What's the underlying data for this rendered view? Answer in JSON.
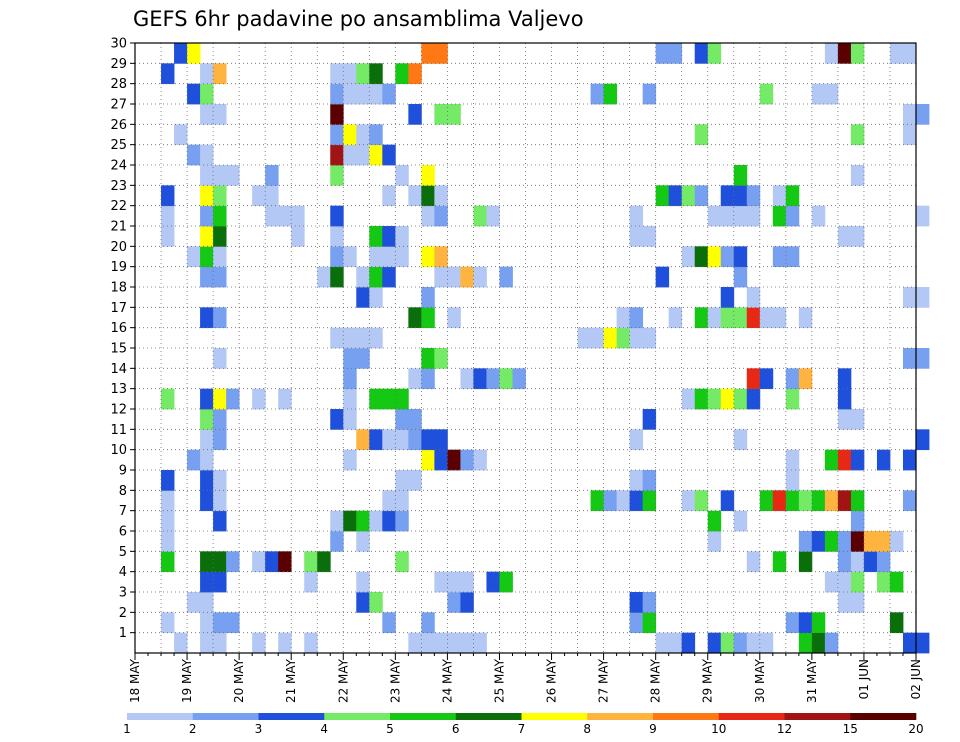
{
  "chart_data": {
    "type": "heatmap",
    "title": "GEFS 6hr padavine po ansamblima Valjevo",
    "y_categories": [
      "1",
      "2",
      "3",
      "4",
      "5",
      "6",
      "7",
      "8",
      "9",
      "10",
      "11",
      "12",
      "13",
      "14",
      "15",
      "16",
      "17",
      "18",
      "19",
      "20",
      "21",
      "22",
      "23",
      "24",
      "25",
      "26",
      "27",
      "28",
      "29",
      "30"
    ],
    "x_labels": [
      "18 MAY",
      "19 MAY",
      "20 MAY",
      "21 MAY",
      "22 MAY",
      "23 MAY",
      "24 MAY",
      "25 MAY",
      "26 MAY",
      "27 MAY",
      "28 MAY",
      "29 MAY",
      "30 MAY",
      "31 MAY",
      "01 JUN",
      "02 JUN"
    ],
    "steps_per_day": 4,
    "grid": true,
    "colorbar": {
      "labels": [
        "1",
        "2",
        "3",
        "4",
        "5",
        "6",
        "7",
        "8",
        "9",
        "10",
        "12",
        "15",
        "20"
      ],
      "colors": [
        "#b4c8f5",
        "#78a0f0",
        "#1e50dc",
        "#74ea66",
        "#14c814",
        "#0a6e0a",
        "#ffff00",
        "#ffb440",
        "#ff7814",
        "#e62814",
        "#a01414",
        "#5a0000"
      ]
    },
    "cells": {
      "30": [
        [
          3,
          3
        ],
        [
          4,
          7
        ],
        [
          22,
          9
        ],
        [
          23,
          9
        ],
        [
          40,
          2
        ],
        [
          41,
          2
        ],
        [
          43,
          3
        ],
        [
          44,
          4
        ],
        [
          53,
          1
        ],
        [
          54,
          12
        ],
        [
          55,
          4
        ],
        [
          58,
          1
        ],
        [
          59,
          1
        ]
      ],
      "29": [
        [
          2,
          3
        ],
        [
          5,
          1
        ],
        [
          6,
          8
        ],
        [
          15,
          1
        ],
        [
          16,
          1
        ],
        [
          17,
          4
        ],
        [
          18,
          6
        ],
        [
          20,
          5
        ],
        [
          21,
          9
        ]
      ],
      "28": [
        [
          4,
          3
        ],
        [
          5,
          4
        ],
        [
          15,
          2
        ],
        [
          16,
          1
        ],
        [
          17,
          1
        ],
        [
          18,
          1
        ],
        [
          19,
          2
        ],
        [
          35,
          2
        ],
        [
          36,
          5
        ],
        [
          39,
          2
        ],
        [
          48,
          4
        ],
        [
          52,
          1
        ],
        [
          53,
          1
        ]
      ],
      "27": [
        [
          5,
          1
        ],
        [
          6,
          1
        ],
        [
          15,
          12
        ],
        [
          21,
          3
        ],
        [
          23,
          4
        ],
        [
          24,
          4
        ],
        [
          59,
          1
        ],
        [
          60,
          2
        ]
      ],
      "26": [
        [
          3,
          1
        ],
        [
          15,
          2
        ],
        [
          16,
          7
        ],
        [
          17,
          1
        ],
        [
          18,
          2
        ],
        [
          43,
          4
        ],
        [
          55,
          4
        ],
        [
          59,
          1
        ]
      ],
      "25": [
        [
          4,
          2
        ],
        [
          5,
          1
        ],
        [
          15,
          11
        ],
        [
          16,
          1
        ],
        [
          17,
          1
        ],
        [
          18,
          7
        ],
        [
          19,
          3
        ]
      ],
      "24": [
        [
          5,
          1
        ],
        [
          6,
          1
        ],
        [
          7,
          1
        ],
        [
          10,
          2
        ],
        [
          15,
          4
        ],
        [
          20,
          1
        ],
        [
          22,
          7
        ],
        [
          46,
          5
        ],
        [
          55,
          1
        ]
      ],
      "23": [
        [
          2,
          3
        ],
        [
          5,
          7
        ],
        [
          6,
          4
        ],
        [
          9,
          1
        ],
        [
          10,
          1
        ],
        [
          19,
          1
        ],
        [
          21,
          1
        ],
        [
          22,
          6
        ],
        [
          23,
          1
        ],
        [
          40,
          5
        ],
        [
          41,
          3
        ],
        [
          42,
          4
        ],
        [
          43,
          2
        ],
        [
          45,
          3
        ],
        [
          46,
          3
        ],
        [
          47,
          2
        ],
        [
          49,
          1
        ],
        [
          50,
          5
        ]
      ],
      "22": [
        [
          2,
          1
        ],
        [
          5,
          2
        ],
        [
          6,
          5
        ],
        [
          10,
          1
        ],
        [
          11,
          1
        ],
        [
          12,
          1
        ],
        [
          15,
          3
        ],
        [
          22,
          1
        ],
        [
          23,
          2
        ],
        [
          26,
          4
        ],
        [
          27,
          1
        ],
        [
          38,
          1
        ],
        [
          44,
          1
        ],
        [
          45,
          1
        ],
        [
          46,
          1
        ],
        [
          47,
          1
        ],
        [
          49,
          5
        ],
        [
          50,
          2
        ],
        [
          52,
          1
        ],
        [
          60,
          1
        ]
      ],
      "21": [
        [
          2,
          1
        ],
        [
          5,
          7
        ],
        [
          6,
          6
        ],
        [
          12,
          1
        ],
        [
          15,
          1
        ],
        [
          18,
          5
        ],
        [
          19,
          3
        ],
        [
          20,
          1
        ],
        [
          38,
          1
        ],
        [
          39,
          1
        ],
        [
          54,
          1
        ],
        [
          55,
          1
        ]
      ],
      "20": [
        [
          4,
          1
        ],
        [
          5,
          5
        ],
        [
          6,
          1
        ],
        [
          15,
          2
        ],
        [
          16,
          1
        ],
        [
          18,
          1
        ],
        [
          19,
          1
        ],
        [
          20,
          1
        ],
        [
          22,
          7
        ],
        [
          23,
          8
        ],
        [
          42,
          1
        ],
        [
          43,
          6
        ],
        [
          44,
          7
        ],
        [
          45,
          2
        ],
        [
          46,
          3
        ],
        [
          49,
          2
        ],
        [
          50,
          2
        ]
      ],
      "19": [
        [
          5,
          2
        ],
        [
          6,
          2
        ],
        [
          14,
          1
        ],
        [
          15,
          6
        ],
        [
          17,
          1
        ],
        [
          18,
          5
        ],
        [
          19,
          3
        ],
        [
          23,
          1
        ],
        [
          24,
          1
        ],
        [
          25,
          8
        ],
        [
          26,
          1
        ],
        [
          28,
          2
        ],
        [
          40,
          3
        ],
        [
          46,
          2
        ]
      ],
      "18": [
        [
          17,
          3
        ],
        [
          18,
          1
        ],
        [
          22,
          2
        ],
        [
          45,
          3
        ],
        [
          47,
          1
        ],
        [
          59,
          1
        ],
        [
          60,
          1
        ]
      ],
      "17": [
        [
          5,
          3
        ],
        [
          6,
          2
        ],
        [
          21,
          6
        ],
        [
          22,
          5
        ],
        [
          24,
          1
        ],
        [
          37,
          1
        ],
        [
          38,
          2
        ],
        [
          41,
          1
        ],
        [
          43,
          5
        ],
        [
          44,
          1
        ],
        [
          45,
          4
        ],
        [
          46,
          4
        ],
        [
          47,
          10
        ],
        [
          48,
          1
        ],
        [
          49,
          1
        ],
        [
          51,
          1
        ]
      ],
      "16": [
        [
          15,
          1
        ],
        [
          16,
          1
        ],
        [
          17,
          1
        ],
        [
          18,
          1
        ],
        [
          34,
          1
        ],
        [
          35,
          1
        ],
        [
          36,
          7
        ],
        [
          37,
          4
        ],
        [
          38,
          1
        ],
        [
          39,
          1
        ]
      ],
      "15": [
        [
          6,
          1
        ],
        [
          16,
          2
        ],
        [
          17,
          2
        ],
        [
          22,
          5
        ],
        [
          23,
          4
        ],
        [
          59,
          2
        ],
        [
          60,
          2
        ]
      ],
      "14": [
        [
          16,
          2
        ],
        [
          21,
          1
        ],
        [
          22,
          2
        ],
        [
          25,
          1
        ],
        [
          26,
          3
        ],
        [
          27,
          2
        ],
        [
          28,
          4
        ],
        [
          29,
          2
        ],
        [
          47,
          10
        ],
        [
          48,
          3
        ],
        [
          50,
          2
        ],
        [
          51,
          8
        ],
        [
          54,
          3
        ]
      ],
      "13": [
        [
          2,
          4
        ],
        [
          5,
          3
        ],
        [
          6,
          7
        ],
        [
          7,
          2
        ],
        [
          9,
          1
        ],
        [
          11,
          1
        ],
        [
          16,
          1
        ],
        [
          18,
          5
        ],
        [
          19,
          5
        ],
        [
          20,
          5
        ],
        [
          42,
          1
        ],
        [
          43,
          5
        ],
        [
          44,
          4
        ],
        [
          45,
          7
        ],
        [
          46,
          4
        ],
        [
          47,
          3
        ],
        [
          50,
          4
        ],
        [
          54,
          3
        ]
      ],
      "12": [
        [
          5,
          4
        ],
        [
          6,
          2
        ],
        [
          15,
          3
        ],
        [
          16,
          1
        ],
        [
          20,
          2
        ],
        [
          21,
          2
        ],
        [
          39,
          3
        ],
        [
          54,
          1
        ],
        [
          55,
          1
        ]
      ],
      "11": [
        [
          5,
          1
        ],
        [
          6,
          2
        ],
        [
          17,
          8
        ],
        [
          18,
          3
        ],
        [
          19,
          1
        ],
        [
          20,
          1
        ],
        [
          21,
          2
        ],
        [
          22,
          3
        ],
        [
          23,
          3
        ],
        [
          38,
          1
        ],
        [
          46,
          1
        ],
        [
          60,
          3
        ]
      ],
      "10": [
        [
          4,
          2
        ],
        [
          5,
          1
        ],
        [
          16,
          1
        ],
        [
          22,
          7
        ],
        [
          23,
          3
        ],
        [
          24,
          12
        ],
        [
          25,
          2
        ],
        [
          26,
          1
        ],
        [
          50,
          1
        ],
        [
          53,
          5
        ],
        [
          54,
          10
        ],
        [
          55,
          3
        ],
        [
          57,
          3
        ],
        [
          59,
          3
        ]
      ],
      "9": [
        [
          2,
          3
        ],
        [
          5,
          3
        ],
        [
          6,
          1
        ],
        [
          20,
          1
        ],
        [
          21,
          1
        ],
        [
          38,
          1
        ],
        [
          39,
          2
        ],
        [
          50,
          1
        ]
      ],
      "8": [
        [
          2,
          1
        ],
        [
          5,
          3
        ],
        [
          6,
          1
        ],
        [
          19,
          1
        ],
        [
          20,
          1
        ],
        [
          35,
          5
        ],
        [
          36,
          2
        ],
        [
          37,
          1
        ],
        [
          38,
          3
        ],
        [
          39,
          5
        ],
        [
          42,
          1
        ],
        [
          43,
          4
        ],
        [
          45,
          3
        ],
        [
          48,
          5
        ],
        [
          49,
          10
        ],
        [
          50,
          5
        ],
        [
          51,
          4
        ],
        [
          52,
          5
        ],
        [
          53,
          8
        ],
        [
          54,
          11
        ],
        [
          55,
          5
        ],
        [
          59,
          2
        ]
      ],
      "7": [
        [
          2,
          1
        ],
        [
          6,
          3
        ],
        [
          15,
          1
        ],
        [
          16,
          6
        ],
        [
          17,
          5
        ],
        [
          18,
          1
        ],
        [
          19,
          3
        ],
        [
          20,
          2
        ],
        [
          44,
          5
        ],
        [
          46,
          1
        ],
        [
          55,
          2
        ]
      ],
      "6": [
        [
          2,
          1
        ],
        [
          15,
          2
        ],
        [
          17,
          1
        ],
        [
          44,
          1
        ],
        [
          51,
          2
        ],
        [
          52,
          3
        ],
        [
          53,
          5
        ],
        [
          54,
          2
        ],
        [
          55,
          12
        ],
        [
          56,
          8
        ],
        [
          57,
          8
        ],
        [
          58,
          1
        ]
      ],
      "5": [
        [
          2,
          5
        ],
        [
          5,
          6
        ],
        [
          6,
          6
        ],
        [
          7,
          2
        ],
        [
          9,
          1
        ],
        [
          10,
          3
        ],
        [
          11,
          12
        ],
        [
          13,
          4
        ],
        [
          14,
          6
        ],
        [
          20,
          4
        ],
        [
          47,
          1
        ],
        [
          49,
          5
        ],
        [
          51,
          6
        ],
        [
          54,
          2
        ],
        [
          55,
          1
        ],
        [
          56,
          3
        ],
        [
          57,
          2
        ]
      ],
      "4": [
        [
          5,
          3
        ],
        [
          6,
          3
        ],
        [
          13,
          1
        ],
        [
          17,
          1
        ],
        [
          23,
          1
        ],
        [
          24,
          1
        ],
        [
          25,
          1
        ],
        [
          27,
          3
        ],
        [
          28,
          5
        ],
        [
          53,
          1
        ],
        [
          54,
          1
        ],
        [
          55,
          4
        ],
        [
          57,
          4
        ],
        [
          58,
          5
        ]
      ],
      "3": [
        [
          4,
          1
        ],
        [
          5,
          1
        ],
        [
          17,
          3
        ],
        [
          18,
          4
        ],
        [
          24,
          2
        ],
        [
          25,
          3
        ],
        [
          38,
          3
        ],
        [
          39,
          2
        ],
        [
          54,
          1
        ],
        [
          55,
          1
        ]
      ],
      "2": [
        [
          2,
          1
        ],
        [
          5,
          1
        ],
        [
          6,
          2
        ],
        [
          7,
          2
        ],
        [
          19,
          2
        ],
        [
          22,
          2
        ],
        [
          38,
          2
        ],
        [
          39,
          5
        ],
        [
          50,
          2
        ],
        [
          51,
          3
        ],
        [
          52,
          5
        ],
        [
          58,
          6
        ]
      ],
      "1": [
        [
          3,
          1
        ],
        [
          5,
          1
        ],
        [
          6,
          1
        ],
        [
          9,
          1
        ],
        [
          11,
          1
        ],
        [
          13,
          1
        ],
        [
          21,
          1
        ],
        [
          22,
          1
        ],
        [
          23,
          1
        ],
        [
          24,
          1
        ],
        [
          25,
          1
        ],
        [
          26,
          1
        ],
        [
          40,
          1
        ],
        [
          41,
          1
        ],
        [
          42,
          3
        ],
        [
          44,
          3
        ],
        [
          45,
          4
        ],
        [
          46,
          2
        ],
        [
          47,
          1
        ],
        [
          48,
          1
        ],
        [
          51,
          5
        ],
        [
          52,
          6
        ],
        [
          53,
          2
        ],
        [
          59,
          3
        ],
        [
          60,
          3
        ]
      ]
    }
  }
}
